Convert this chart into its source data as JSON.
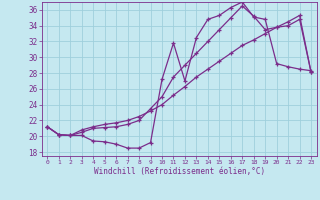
{
  "xlabel": "Windchill (Refroidissement éolien,°C)",
  "background_color": "#c5e8f0",
  "line_color": "#7b2d8b",
  "grid_color": "#9fcfdc",
  "xlim": [
    -0.5,
    23.5
  ],
  "ylim": [
    17.5,
    37.0
  ],
  "yticks": [
    18,
    20,
    22,
    24,
    26,
    28,
    30,
    32,
    34,
    36
  ],
  "xticks": [
    0,
    1,
    2,
    3,
    4,
    5,
    6,
    7,
    8,
    9,
    10,
    11,
    12,
    13,
    14,
    15,
    16,
    17,
    18,
    19,
    20,
    21,
    22,
    23
  ],
  "line1_x": [
    0,
    1,
    2,
    3,
    4,
    5,
    6,
    7,
    8,
    9,
    10,
    11,
    12,
    13,
    14,
    15,
    16,
    17,
    18,
    19,
    20,
    21,
    22,
    23
  ],
  "line1_y": [
    21.2,
    20.2,
    20.1,
    20.1,
    19.4,
    19.3,
    19.0,
    18.5,
    18.5,
    19.2,
    27.2,
    31.8,
    27.0,
    32.5,
    34.8,
    35.3,
    36.3,
    37.0,
    35.1,
    34.8,
    29.2,
    28.8,
    28.5,
    28.3
  ],
  "line2_x": [
    0,
    1,
    2,
    3,
    4,
    5,
    6,
    7,
    8,
    9,
    10,
    11,
    12,
    13,
    14,
    15,
    16,
    17,
    18,
    19,
    20,
    21,
    22,
    23
  ],
  "line2_y": [
    21.2,
    20.2,
    20.1,
    20.5,
    21.0,
    21.1,
    21.2,
    21.5,
    22.0,
    23.5,
    25.0,
    27.5,
    29.0,
    30.5,
    32.0,
    33.5,
    35.0,
    36.5,
    35.2,
    33.5,
    33.8,
    34.0,
    34.8,
    28.1
  ],
  "line3_x": [
    0,
    1,
    2,
    3,
    4,
    5,
    6,
    7,
    8,
    9,
    10,
    11,
    12,
    13,
    14,
    15,
    16,
    17,
    18,
    19,
    20,
    21,
    22,
    23
  ],
  "line3_y": [
    21.2,
    20.2,
    20.1,
    20.8,
    21.2,
    21.5,
    21.7,
    22.0,
    22.5,
    23.2,
    24.0,
    25.2,
    26.3,
    27.5,
    28.5,
    29.5,
    30.5,
    31.5,
    32.2,
    33.0,
    33.8,
    34.5,
    35.3,
    28.1
  ]
}
